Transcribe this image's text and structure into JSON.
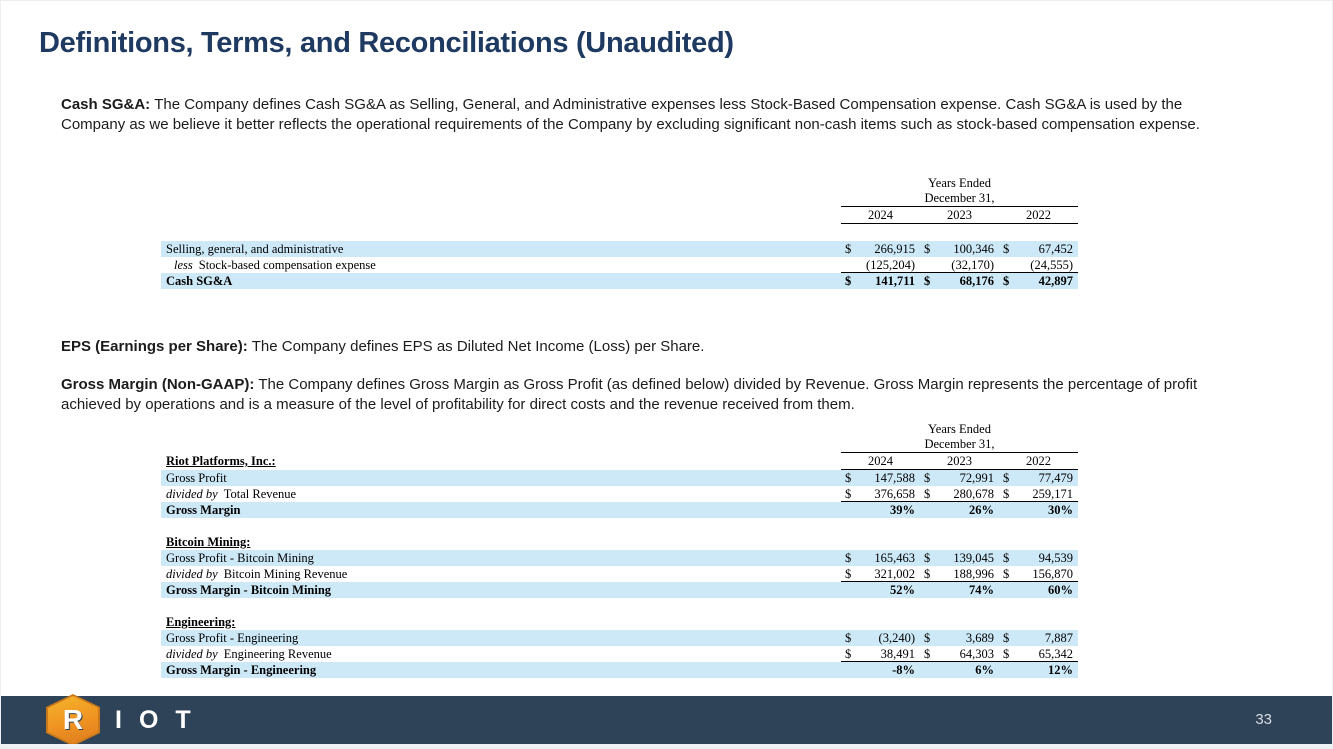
{
  "title": "Definitions, Terms, and Reconciliations (Unaudited)",
  "definitions": {
    "cash_sga": {
      "lead": "Cash SG&A:",
      "body": "The Company defines Cash SG&A as Selling, General, and Administrative expenses less Stock-Based Compensation expense. Cash SG&A is used by the Company as we believe it better reflects the operational requirements of the Company by excluding significant non-cash items such as stock-based compensation expense."
    },
    "eps": {
      "lead": "EPS (Earnings per Share):",
      "body": "The Company defines EPS as Diluted Net Income (Loss) per Share."
    },
    "gross_margin": {
      "lead": "Gross Margin (Non-GAAP):",
      "body": "The Company defines Gross Margin as Gross Profit (as defined below) divided by Revenue. Gross Margin represents the percentage of profit achieved by operations and is a measure of the level of profitability for direct costs and the revenue received from them."
    }
  },
  "table_header": {
    "line1": "Years Ended",
    "line2": "December 31,",
    "years": [
      "2024",
      "2023",
      "2022"
    ],
    "currency_symbol": "$"
  },
  "cash_sga_table": {
    "rows": [
      {
        "label": "Selling, general, and administrative",
        "dollar": true,
        "blue": true,
        "values": [
          "266,915",
          "100,346",
          "67,452"
        ]
      },
      {
        "prefix": "less",
        "indent": true,
        "label": "Stock-based compensation expense",
        "underline": true,
        "values": [
          "(125,204)",
          "(32,170)",
          "(24,555)"
        ]
      },
      {
        "label": "Cash SG&A",
        "dollar": true,
        "blue": true,
        "bold": true,
        "values": [
          "141,711",
          "68,176",
          "42,897"
        ]
      }
    ]
  },
  "gross_margin_table": {
    "sections": [
      {
        "heading": "Riot Platforms, Inc.:",
        "inline_heading": true,
        "rows": [
          {
            "label": "Gross Profit",
            "dollar": true,
            "blue": true,
            "values": [
              "147,588",
              "72,991",
              "77,479"
            ]
          },
          {
            "prefix": "divided by",
            "label": "Total Revenue",
            "dollar": true,
            "underline": true,
            "values": [
              "376,658",
              "280,678",
              "259,171"
            ]
          },
          {
            "label": "Gross Margin",
            "blue": true,
            "bold": true,
            "values": [
              "39%",
              "26%",
              "30%"
            ]
          }
        ]
      },
      {
        "heading": "Bitcoin Mining:",
        "rows": [
          {
            "label": "Gross Profit - Bitcoin Mining",
            "dollar": true,
            "blue": true,
            "values": [
              "165,463",
              "139,045",
              "94,539"
            ]
          },
          {
            "prefix": "divided by",
            "label": "Bitcoin Mining Revenue",
            "dollar": true,
            "underline": true,
            "values": [
              "321,002",
              "188,996",
              "156,870"
            ]
          },
          {
            "label": "Gross Margin - Bitcoin Mining",
            "blue": true,
            "bold": true,
            "values": [
              "52%",
              "74%",
              "60%"
            ]
          }
        ]
      },
      {
        "heading": "Engineering:",
        "rows": [
          {
            "label": "Gross Profit - Engineering",
            "dollar": true,
            "blue": true,
            "values": [
              "(3,240)",
              "3,689",
              "7,887"
            ]
          },
          {
            "prefix": "divided by",
            "label": "Engineering Revenue",
            "dollar": true,
            "underline": true,
            "values": [
              "38,491",
              "64,303",
              "65,342"
            ]
          },
          {
            "label": "Gross Margin - Engineering",
            "blue": true,
            "bold": true,
            "values": [
              "-8%",
              "6%",
              "12%"
            ]
          }
        ]
      }
    ]
  },
  "footer": {
    "logo_r": "R",
    "logo_rest": "IOT",
    "page_number": "33"
  },
  "colors": {
    "title_navy": "#1e3a60",
    "footer_navy": "#2e4357",
    "row_blue": "#cde9f8",
    "logo_orange": "#ef9322"
  }
}
